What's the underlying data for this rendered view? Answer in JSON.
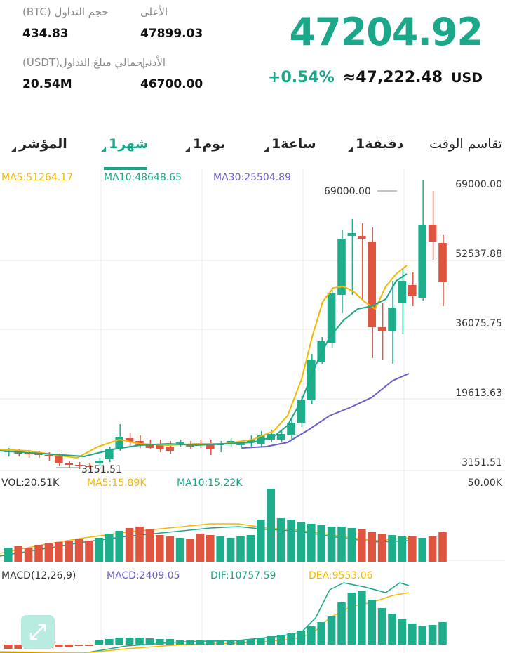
{
  "header": {
    "high_label": "الأعلى",
    "high_value": "47899.03",
    "vol_btc_label": "حجم التداول (BTC)",
    "vol_btc_value": "434.83",
    "low_label": "الأدنى",
    "low_value": "46700.00",
    "vol_usdt_label": "إجمالي مبلغ التداول(USDT)",
    "vol_usdt_value": "20.54M",
    "price": "47204.92",
    "change_pct": "+0.54%",
    "approx_usd": "≈47,222.48",
    "currency": "USD",
    "accent_color": "#1ba78a"
  },
  "tabs": {
    "title": "تقاسم الوقت",
    "items": [
      {
        "label": "1دقيقة",
        "active": false
      },
      {
        "label": "1ساعة",
        "active": false
      },
      {
        "label": "1يوم",
        "active": false
      },
      {
        "label": "1شهر",
        "active": true
      },
      {
        "label": "المؤشر",
        "active": false
      }
    ]
  },
  "main_chart": {
    "ma5_label": "MA5:51264.17",
    "ma10_label": "MA10:48648.65",
    "ma30_label": "MA30:25504.89",
    "ma5_color": "#f5b800",
    "ma10_color": "#1ba78a",
    "ma30_color": "#6b5fc7",
    "axis_labels": [
      "69000.00",
      "52537.88",
      "36075.75",
      "19613.63",
      "3151.51"
    ],
    "max_annotation": "69000.00",
    "min_annotation": "3151.51",
    "up_color": "#1fae8c",
    "down_color": "#e05540"
  },
  "volume_chart": {
    "vol_label": "VOL:20.51K",
    "ma5_label": "MA5:15.89K",
    "ma10_label": "MA10:15.22K",
    "axis_max": "50.00K"
  },
  "macd_chart": {
    "params_label": "MACD(12,26,9)",
    "macd_label": "MACD:2409.05",
    "dif_label": "DIF:10757.59",
    "dea_label": "DEA:9553.06",
    "macd_color": "#6b5fc7",
    "dif_color": "#1ba78a",
    "dea_color": "#f5b800"
  },
  "icons": {
    "expand": "expand-icon"
  }
}
